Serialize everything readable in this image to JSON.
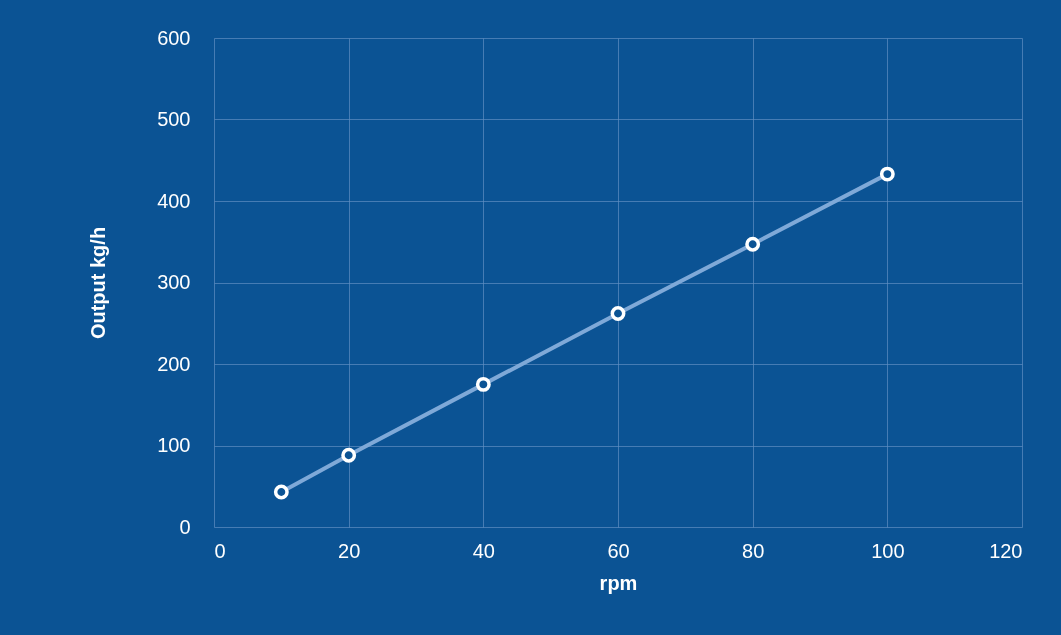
{
  "chart_data": {
    "type": "line",
    "xlabel": "rpm",
    "ylabel": "Output kg/h",
    "x": [
      10,
      20,
      40,
      60,
      80,
      100
    ],
    "series": [
      {
        "color": "#7fa9d8",
        "values": [
          43,
          88,
          175,
          262,
          347,
          433
        ]
      }
    ],
    "xlim": [
      0,
      120
    ],
    "xticks": [
      0,
      20,
      40,
      60,
      80,
      100,
      120
    ],
    "ylim": [
      0,
      600
    ],
    "yticks": [
      0,
      100,
      200,
      300,
      400,
      500,
      600
    ],
    "grid": true,
    "marker": "circle",
    "line_style": "solid"
  }
}
